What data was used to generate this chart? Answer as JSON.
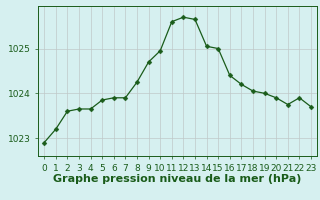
{
  "x": [
    0,
    1,
    2,
    3,
    4,
    5,
    6,
    7,
    8,
    9,
    10,
    11,
    12,
    13,
    14,
    15,
    16,
    17,
    18,
    19,
    20,
    21,
    22,
    23
  ],
  "y": [
    1022.9,
    1023.2,
    1023.6,
    1023.65,
    1023.65,
    1023.85,
    1023.9,
    1023.9,
    1024.25,
    1024.7,
    1024.95,
    1025.6,
    1025.7,
    1025.65,
    1025.05,
    1025.0,
    1024.4,
    1024.2,
    1024.05,
    1024.0,
    1023.9,
    1023.75,
    1023.9,
    1023.7
  ],
  "line_color": "#1a5c1a",
  "marker": "D",
  "marker_size": 2.5,
  "bg_color": "#d6f0f0",
  "grid_color": "#c0c8c8",
  "xlabel": "Graphe pression niveau de la mer (hPa)",
  "xlabel_fontsize": 8,
  "tick_fontsize": 6.5,
  "yticks": [
    1023,
    1024,
    1025
  ],
  "ylim": [
    1022.6,
    1025.95
  ],
  "xlim": [
    -0.5,
    23.5
  ],
  "xtick_labels": [
    "0",
    "1",
    "2",
    "3",
    "4",
    "5",
    "6",
    "7",
    "8",
    "9",
    "10",
    "11",
    "12",
    "13",
    "14",
    "15",
    "16",
    "17",
    "18",
    "19",
    "20",
    "21",
    "22",
    "23"
  ]
}
